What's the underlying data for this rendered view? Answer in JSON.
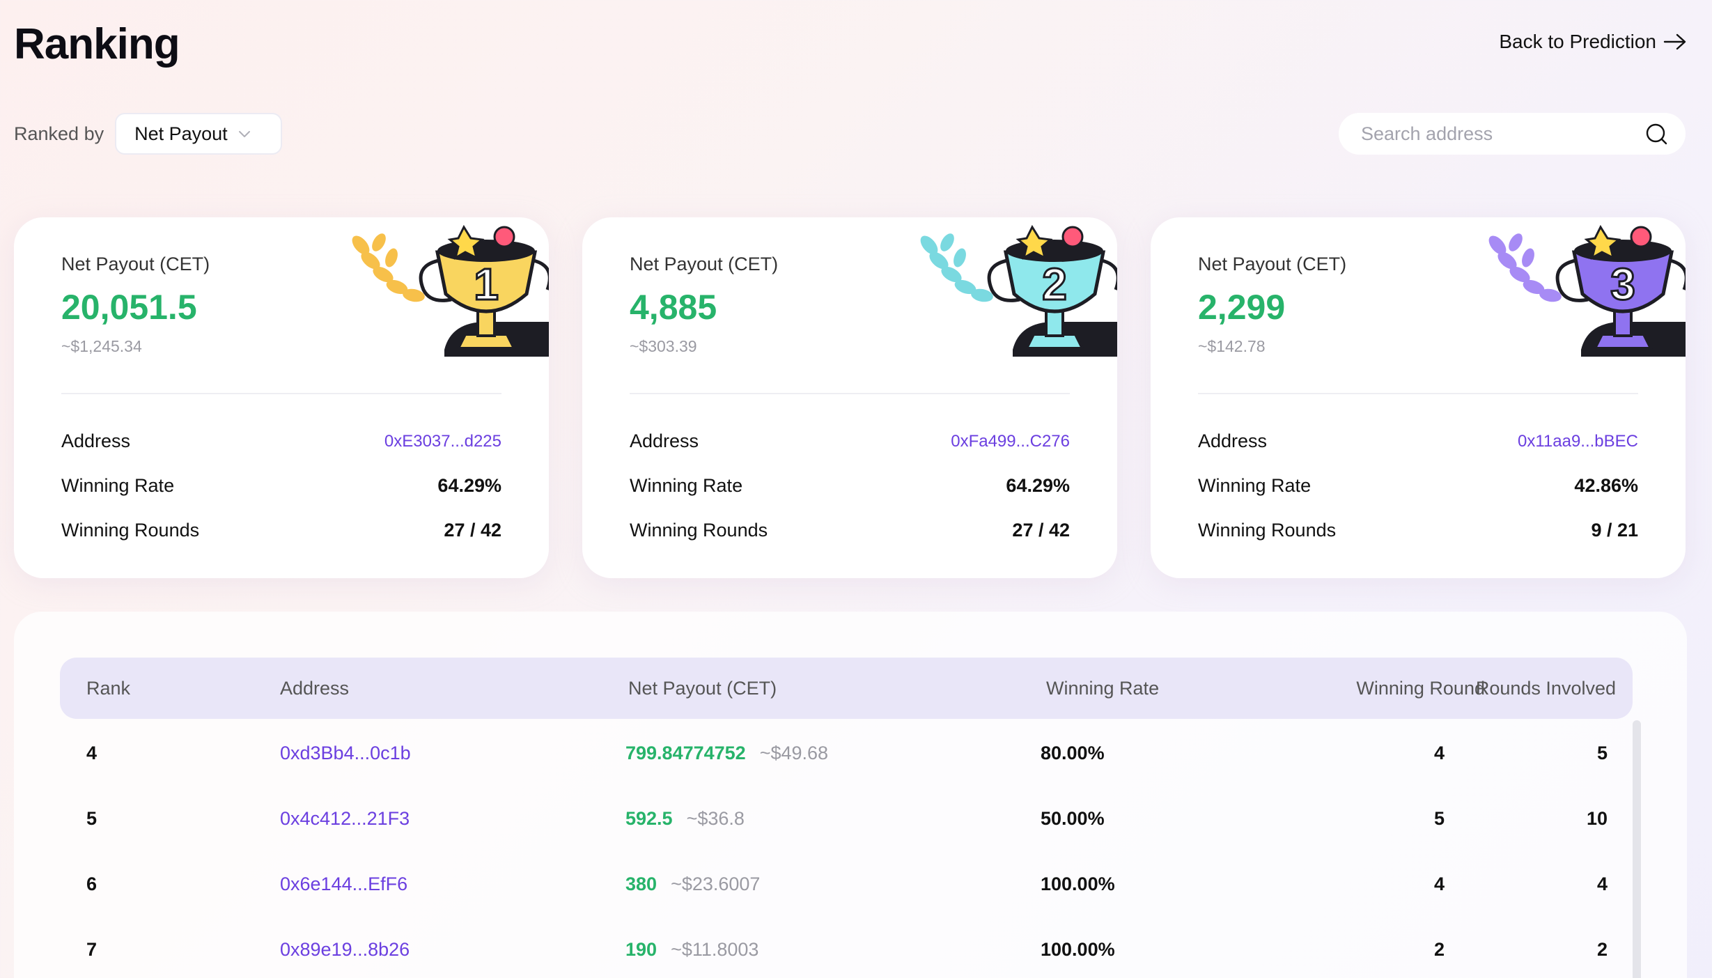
{
  "header": {
    "title": "Ranking",
    "back_label": "Back to Prediction"
  },
  "filters": {
    "ranked_by_label": "Ranked by",
    "ranked_by_value": "Net Payout",
    "search_placeholder": "Search address"
  },
  "top_cards": [
    {
      "rank": "1",
      "label": "Net Payout (CET)",
      "value": "20,051.5",
      "usd": "~$1,245.34",
      "address_label": "Address",
      "address": "0xE3037...d225",
      "winning_rate_label": "Winning Rate",
      "winning_rate": "64.29%",
      "winning_rounds_label": "Winning Rounds",
      "winning_rounds": "27 / 42",
      "trophy_color": "#f9d55f",
      "leaf_color": "#f7c04a"
    },
    {
      "rank": "2",
      "label": "Net Payout (CET)",
      "value": "4,885",
      "usd": "~$303.39",
      "address_label": "Address",
      "address": "0xFa499...C276",
      "winning_rate_label": "Winning Rate",
      "winning_rate": "64.29%",
      "winning_rounds_label": "Winning Rounds",
      "winning_rounds": "27 / 42",
      "trophy_color": "#8fe8ec",
      "leaf_color": "#7ad9e0"
    },
    {
      "rank": "3",
      "label": "Net Payout (CET)",
      "value": "2,299",
      "usd": "~$142.78",
      "address_label": "Address",
      "address": "0x11aa9...bBEC",
      "winning_rate_label": "Winning Rate",
      "winning_rate": "42.86%",
      "winning_rounds_label": "Winning Rounds",
      "winning_rounds": "9 / 21",
      "trophy_color": "#8f73f0",
      "leaf_color": "#a78bf5"
    }
  ],
  "table": {
    "columns": [
      "Rank",
      "Address",
      "Net Payout (CET)",
      "Winning Rate",
      "Winning Round",
      "Rounds Involved"
    ],
    "rows": [
      {
        "rank": "4",
        "address": "0xd3Bb4...0c1b",
        "payout": "799.84774752",
        "usd": "~$49.68",
        "rate": "80.00%",
        "won": "4",
        "involved": "5"
      },
      {
        "rank": "5",
        "address": "0x4c412...21F3",
        "payout": "592.5",
        "usd": "~$36.8",
        "rate": "50.00%",
        "won": "5",
        "involved": "10"
      },
      {
        "rank": "6",
        "address": "0x6e144...EfF6",
        "payout": "380",
        "usd": "~$23.6007",
        "rate": "100.00%",
        "won": "4",
        "involved": "4"
      },
      {
        "rank": "7",
        "address": "0x89e19...8b26",
        "payout": "190",
        "usd": "~$11.8003",
        "rate": "100.00%",
        "won": "2",
        "involved": "2"
      }
    ]
  },
  "colors": {
    "positive": "#27b36a",
    "address": "#6b3fe0",
    "header_bg": "#e9e6f8"
  }
}
